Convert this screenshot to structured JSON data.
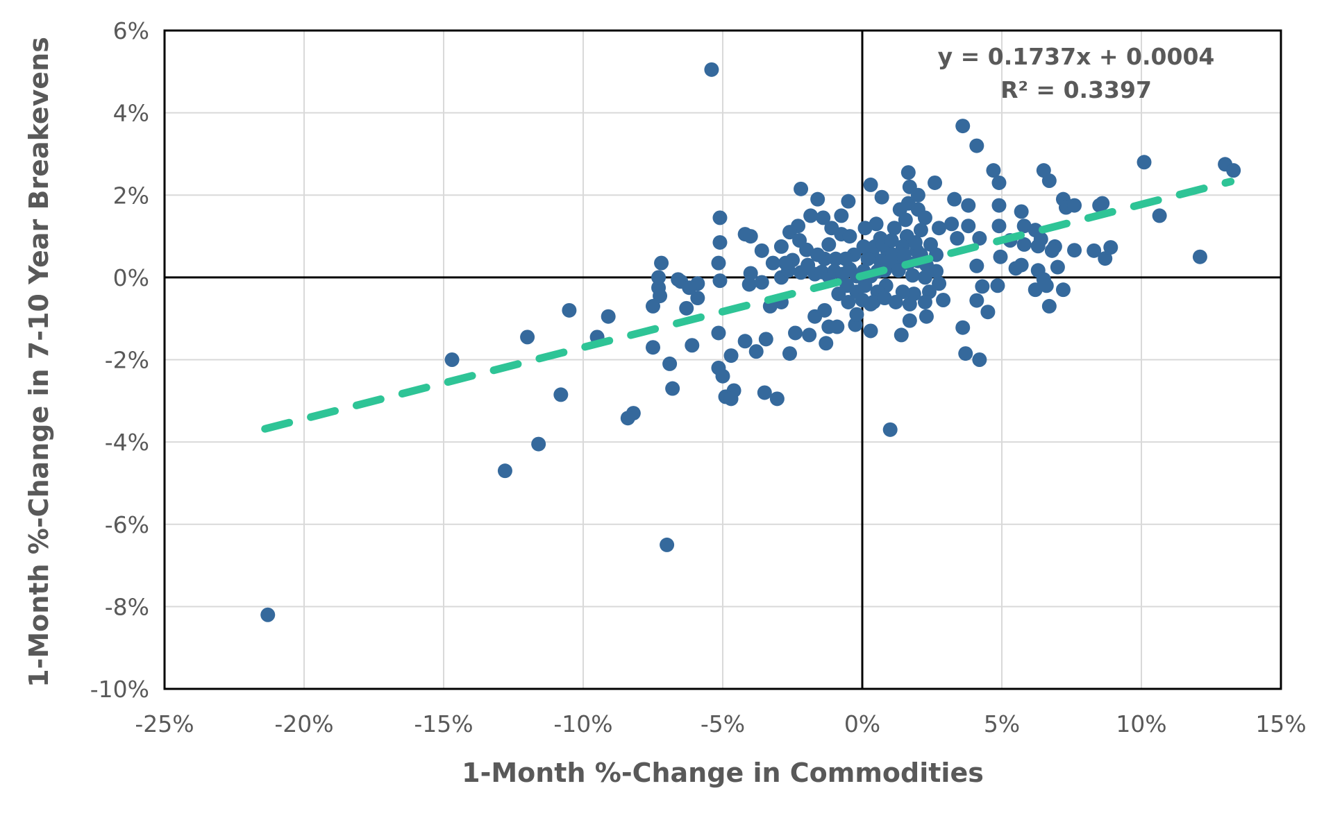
{
  "chart_data": {
    "type": "scatter",
    "title": "",
    "xlabel": "1-Month %-Change in Commodities",
    "ylabel": "1-Month %-Change in 7-10 Year Breakevens",
    "xlim": [
      -25,
      15
    ],
    "ylim": [
      -10,
      6
    ],
    "grid": "both",
    "legend": "none",
    "x_ticks": [
      {
        "v": -25,
        "label": "-25%"
      },
      {
        "v": -20,
        "label": "-20%"
      },
      {
        "v": -15,
        "label": "-15%"
      },
      {
        "v": -10,
        "label": "-10%"
      },
      {
        "v": -5,
        "label": "-5%"
      },
      {
        "v": 0,
        "label": "0%"
      },
      {
        "v": 5,
        "label": "5%"
      },
      {
        "v": 10,
        "label": "10%"
      },
      {
        "v": 15,
        "label": "15%"
      }
    ],
    "y_ticks": [
      {
        "v": 6,
        "label": "6%"
      },
      {
        "v": 4,
        "label": "4%"
      },
      {
        "v": 2,
        "label": "2%"
      },
      {
        "v": 0,
        "label": "0%"
      },
      {
        "v": -2,
        "label": "-2%"
      },
      {
        "v": -4,
        "label": "-4%"
      },
      {
        "v": -6,
        "label": "-6%"
      },
      {
        "v": -8,
        "label": "-8%"
      },
      {
        "v": -10,
        "label": "-10%"
      }
    ],
    "annotation": {
      "line1": "y = 0.1737x + 0.0004",
      "line2": "R² = 0.3397"
    },
    "trendline": {
      "slope": 0.1737,
      "intercept": 0.0004,
      "r_squared": 0.3397,
      "x_start": -21.4,
      "y_start": -3.68,
      "x_end": 13.2,
      "y_end": 2.33
    },
    "colors": {
      "point": "#35699c",
      "trend": "#2ec496",
      "grid": "#d9d9d9",
      "axis": "#000000",
      "text": "#595959"
    },
    "points": [
      [
        -21.3,
        -8.2
      ],
      [
        -14.7,
        -2.0
      ],
      [
        -12.8,
        -4.7
      ],
      [
        -11.6,
        -4.05
      ],
      [
        -12.0,
        -1.45
      ],
      [
        -10.8,
        -2.85
      ],
      [
        -10.5,
        -0.8
      ],
      [
        -9.1,
        -0.95
      ],
      [
        -9.5,
        -1.45
      ],
      [
        -8.2,
        -3.3
      ],
      [
        -8.4,
        -3.42
      ],
      [
        -7.0,
        -6.5
      ],
      [
        -5.4,
        5.05
      ],
      [
        -7.2,
        0.35
      ],
      [
        -7.3,
        -0.25
      ],
      [
        -7.25,
        -0.45
      ],
      [
        -7.5,
        -0.7
      ],
      [
        -6.5,
        -0.1
      ],
      [
        -5.9,
        -0.15
      ],
      [
        -6.3,
        -0.75
      ],
      [
        -7.5,
        -1.7
      ],
      [
        -6.1,
        -1.65
      ],
      [
        -6.9,
        -2.1
      ],
      [
        -6.8,
        -2.7
      ],
      [
        -7.3,
        0.0
      ],
      [
        -6.6,
        -0.05
      ],
      [
        -6.2,
        -0.25
      ],
      [
        -5.9,
        -0.5
      ],
      [
        -5.15,
        -1.35
      ],
      [
        -5.15,
        -2.2
      ],
      [
        -4.6,
        -2.75
      ],
      [
        -4.9,
        -2.9
      ],
      [
        -4.7,
        -2.95
      ],
      [
        -5.0,
        -2.4
      ],
      [
        -3.5,
        -2.8
      ],
      [
        -3.05,
        -2.95
      ],
      [
        -5.1,
        1.45
      ],
      [
        -5.1,
        0.85
      ],
      [
        -5.15,
        0.35
      ],
      [
        -5.1,
        -0.08
      ],
      [
        -4.2,
        1.05
      ],
      [
        -4.0,
        1.0
      ],
      [
        -3.6,
        0.65
      ],
      [
        -2.9,
        0.75
      ],
      [
        -2.2,
        2.15
      ],
      [
        -1.6,
        1.9
      ],
      [
        -1.4,
        1.45
      ],
      [
        -4.7,
        -1.9
      ],
      [
        -4.2,
        -1.55
      ],
      [
        -3.8,
        -1.8
      ],
      [
        -3.45,
        -1.5
      ],
      [
        -2.6,
        -1.85
      ],
      [
        -2.4,
        -1.35
      ],
      [
        -1.9,
        -1.4
      ],
      [
        -1.3,
        -1.6
      ],
      [
        -1.2,
        -1.2
      ],
      [
        -0.9,
        -1.2
      ],
      [
        -0.25,
        -1.15
      ],
      [
        -1.7,
        -0.95
      ],
      [
        -1.35,
        -0.8
      ],
      [
        -2.9,
        -0.6
      ],
      [
        -3.3,
        -0.7
      ],
      [
        -4.05,
        -0.17
      ],
      [
        -3.6,
        -0.12
      ],
      [
        -4.0,
        0.1
      ],
      [
        -2.9,
        0.0
      ],
      [
        -2.65,
        0.17
      ],
      [
        -2.2,
        0.12
      ],
      [
        -1.95,
        0.3
      ],
      [
        -1.7,
        0.08
      ],
      [
        -1.45,
        0.13
      ],
      [
        -1.2,
        0.03
      ],
      [
        -1.0,
        0.15
      ],
      [
        -0.7,
        0.08
      ],
      [
        -0.45,
        0.2
      ],
      [
        -0.2,
        0.03
      ],
      [
        -2.0,
        0.67
      ],
      [
        -2.5,
        0.42
      ],
      [
        -1.2,
        0.8
      ],
      [
        -0.75,
        1.05
      ],
      [
        -0.45,
        1.0
      ],
      [
        -1.1,
        1.2
      ],
      [
        -1.85,
        1.5
      ],
      [
        -2.3,
        1.25
      ],
      [
        -2.6,
        1.1
      ],
      [
        -2.25,
        0.9
      ],
      [
        -0.75,
        1.5
      ],
      [
        -0.5,
        1.85
      ],
      [
        0.1,
        1.2
      ],
      [
        0.5,
        1.3
      ],
      [
        1.35,
        1.65
      ],
      [
        1.65,
        1.8
      ],
      [
        2.0,
        1.65
      ],
      [
        2.25,
        1.45
      ],
      [
        1.55,
        1.4
      ],
      [
        1.15,
        1.2
      ],
      [
        1.6,
        1.0
      ],
      [
        2.1,
        1.15
      ],
      [
        2.75,
        1.2
      ],
      [
        2.45,
        0.8
      ],
      [
        1.95,
        0.65
      ],
      [
        2.65,
        0.55
      ],
      [
        0.65,
        0.95
      ],
      [
        0.9,
        0.65
      ],
      [
        0.35,
        0.6
      ],
      [
        0.65,
        0.4
      ],
      [
        1.0,
        0.35
      ],
      [
        1.35,
        0.45
      ],
      [
        1.65,
        0.35
      ],
      [
        2.0,
        0.4
      ],
      [
        2.3,
        0.3
      ],
      [
        2.65,
        0.15
      ],
      [
        2.25,
        0.0
      ],
      [
        1.8,
        0.05
      ],
      [
        1.3,
        0.17
      ],
      [
        0.8,
        0.17
      ],
      [
        0.05,
        0.15
      ],
      [
        0.3,
        0.03
      ],
      [
        0.55,
        0.15
      ],
      [
        2.75,
        -0.15
      ],
      [
        2.4,
        -0.35
      ],
      [
        1.85,
        -0.4
      ],
      [
        1.45,
        -0.35
      ],
      [
        0.85,
        -0.2
      ],
      [
        0.55,
        -0.35
      ],
      [
        0.1,
        -0.2
      ],
      [
        -0.2,
        -0.35
      ],
      [
        -0.55,
        -0.2
      ],
      [
        -0.85,
        -0.4
      ],
      [
        -0.5,
        -0.6
      ],
      [
        0.0,
        -0.55
      ],
      [
        0.4,
        -0.6
      ],
      [
        0.8,
        -0.5
      ],
      [
        1.2,
        -0.6
      ],
      [
        1.7,
        -0.65
      ],
      [
        2.25,
        -0.6
      ],
      [
        2.9,
        -0.55
      ],
      [
        0.3,
        -1.3
      ],
      [
        1.4,
        -1.4
      ],
      [
        1.7,
        -1.05
      ],
      [
        2.3,
        -0.95
      ],
      [
        3.6,
        -1.22
      ],
      [
        3.7,
        -1.85
      ],
      [
        4.2,
        -2.0
      ],
      [
        0.3,
        -0.65
      ],
      [
        -0.2,
        -0.9
      ],
      [
        1.0,
        -3.7
      ],
      [
        3.6,
        3.68
      ],
      [
        4.1,
        3.2
      ],
      [
        4.7,
        2.6
      ],
      [
        4.9,
        2.3
      ],
      [
        1.65,
        2.55
      ],
      [
        1.7,
        2.2
      ],
      [
        2.0,
        2.0
      ],
      [
        2.6,
        2.3
      ],
      [
        0.7,
        1.95
      ],
      [
        0.3,
        2.25
      ],
      [
        3.3,
        1.9
      ],
      [
        3.8,
        1.75
      ],
      [
        4.9,
        1.75
      ],
      [
        5.7,
        1.6
      ],
      [
        6.5,
        2.6
      ],
      [
        6.7,
        2.35
      ],
      [
        7.2,
        1.9
      ],
      [
        10.1,
        2.8
      ],
      [
        13.0,
        2.75
      ],
      [
        13.3,
        2.6
      ],
      [
        10.65,
        1.5
      ],
      [
        12.1,
        0.5
      ],
      [
        4.9,
        1.25
      ],
      [
        5.3,
        0.9
      ],
      [
        5.8,
        1.25
      ],
      [
        6.2,
        1.15
      ],
      [
        6.9,
        0.75
      ],
      [
        3.2,
        1.3
      ],
      [
        3.8,
        1.25
      ],
      [
        3.4,
        0.95
      ],
      [
        4.2,
        0.95
      ],
      [
        4.95,
        0.5
      ],
      [
        5.8,
        0.8
      ],
      [
        6.4,
        0.93
      ],
      [
        6.3,
        0.76
      ],
      [
        6.8,
        0.65
      ],
      [
        7.6,
        0.66
      ],
      [
        8.3,
        0.65
      ],
      [
        8.7,
        0.46
      ],
      [
        8.9,
        0.73
      ],
      [
        7.3,
        1.7
      ],
      [
        8.5,
        1.75
      ],
      [
        7.6,
        1.75
      ],
      [
        8.6,
        1.8
      ],
      [
        5.7,
        0.3
      ],
      [
        6.3,
        0.17
      ],
      [
        7.0,
        0.25
      ],
      [
        6.5,
        -0.05
      ],
      [
        6.2,
        -0.3
      ],
      [
        6.6,
        -0.2
      ],
      [
        7.2,
        -0.3
      ],
      [
        6.7,
        -0.7
      ],
      [
        4.1,
        0.28
      ],
      [
        4.3,
        -0.22
      ],
      [
        4.85,
        -0.2
      ],
      [
        5.5,
        0.22
      ],
      [
        4.1,
        -0.56
      ],
      [
        4.5,
        -0.84
      ],
      [
        0.2,
        0.45
      ],
      [
        0.45,
        0.75
      ],
      [
        0.75,
        0.8
      ],
      [
        1.05,
        0.9
      ],
      [
        1.1,
        0.55
      ],
      [
        1.45,
        0.75
      ],
      [
        1.5,
        0.55
      ],
      [
        1.9,
        0.85
      ],
      [
        2.1,
        0.55
      ],
      [
        0.05,
        0.75
      ],
      [
        -0.3,
        0.55
      ],
      [
        -0.6,
        0.45
      ],
      [
        -0.95,
        0.45
      ],
      [
        -1.35,
        0.45
      ],
      [
        -1.6,
        0.55
      ],
      [
        -2.75,
        0.35
      ],
      [
        -3.2,
        0.35
      ]
    ]
  }
}
